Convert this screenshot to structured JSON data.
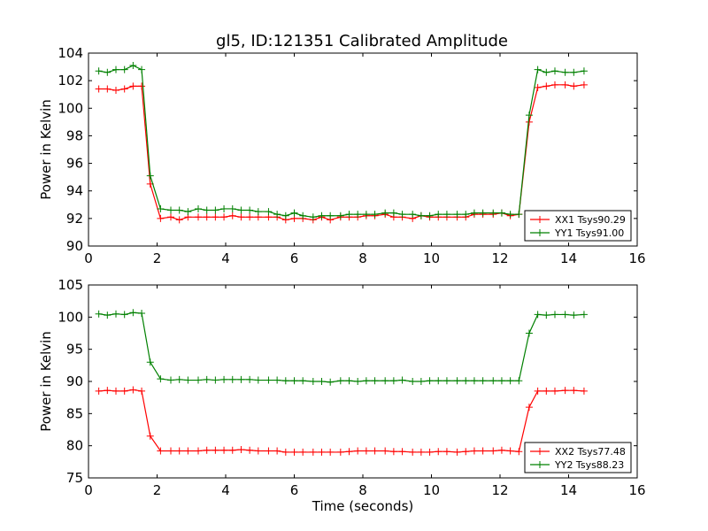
{
  "chart_data": [
    {
      "type": "line",
      "title": "gl5, ID:121351 Calibrated Amplitude",
      "xlabel": "",
      "ylabel": "Power in Kelvin",
      "xlim": [
        0,
        16
      ],
      "ylim": [
        90,
        104
      ],
      "xticks": [
        "0",
        "2",
        "4",
        "6",
        "8",
        "10",
        "12",
        "14",
        "16"
      ],
      "yticks": [
        "90",
        "92",
        "94",
        "96",
        "98",
        "100",
        "102",
        "104"
      ],
      "legend_position": "lower-right",
      "x": [
        0.3,
        0.55,
        0.8,
        1.05,
        1.3,
        1.55,
        1.8,
        2.1,
        2.4,
        2.65,
        2.9,
        3.2,
        3.45,
        3.7,
        3.95,
        4.2,
        4.45,
        4.7,
        4.95,
        5.25,
        5.5,
        5.75,
        6.0,
        6.25,
        6.55,
        6.8,
        7.05,
        7.35,
        7.6,
        7.85,
        8.1,
        8.35,
        8.65,
        8.9,
        9.15,
        9.45,
        9.7,
        9.95,
        10.2,
        10.45,
        10.75,
        11.0,
        11.25,
        11.5,
        11.8,
        12.05,
        12.3,
        12.55,
        12.85,
        13.1,
        13.35,
        13.6,
        13.9,
        14.15,
        14.45
      ],
      "series": [
        {
          "name": "XX1 Tsys90.29",
          "color": "#ff0000",
          "values": [
            101.4,
            101.4,
            101.3,
            101.4,
            101.6,
            101.6,
            94.5,
            92.0,
            92.1,
            91.9,
            92.1,
            92.1,
            92.1,
            92.1,
            92.1,
            92.2,
            92.1,
            92.1,
            92.1,
            92.1,
            92.1,
            91.9,
            92.0,
            92.0,
            91.9,
            92.1,
            91.9,
            92.1,
            92.1,
            92.1,
            92.2,
            92.2,
            92.3,
            92.1,
            92.1,
            92.0,
            92.2,
            92.1,
            92.1,
            92.1,
            92.1,
            92.1,
            92.3,
            92.3,
            92.3,
            92.4,
            92.2,
            92.3,
            99.0,
            101.5,
            101.6,
            101.7,
            101.7,
            101.6,
            101.7
          ]
        },
        {
          "name": "YY1 Tsys91.00",
          "color": "#008000",
          "values": [
            102.7,
            102.6,
            102.8,
            102.8,
            103.1,
            102.8,
            95.1,
            92.7,
            92.6,
            92.6,
            92.5,
            92.7,
            92.6,
            92.6,
            92.7,
            92.7,
            92.6,
            92.6,
            92.5,
            92.5,
            92.3,
            92.2,
            92.4,
            92.2,
            92.1,
            92.2,
            92.2,
            92.2,
            92.3,
            92.3,
            92.3,
            92.3,
            92.4,
            92.4,
            92.3,
            92.3,
            92.2,
            92.2,
            92.3,
            92.3,
            92.3,
            92.3,
            92.4,
            92.4,
            92.4,
            92.4,
            92.3,
            92.3,
            99.5,
            102.8,
            102.6,
            102.7,
            102.6,
            102.6,
            102.7
          ]
        }
      ]
    },
    {
      "type": "line",
      "title": "",
      "xlabel": "Time (seconds)",
      "ylabel": "Power in Kelvin",
      "xlim": [
        0,
        16
      ],
      "ylim": [
        75,
        105
      ],
      "xticks": [
        "0",
        "2",
        "4",
        "6",
        "8",
        "10",
        "12",
        "14",
        "16"
      ],
      "yticks": [
        "75",
        "80",
        "85",
        "90",
        "95",
        "100",
        "105"
      ],
      "legend_position": "lower-right",
      "x": [
        0.3,
        0.55,
        0.8,
        1.05,
        1.3,
        1.55,
        1.8,
        2.1,
        2.4,
        2.65,
        2.9,
        3.2,
        3.45,
        3.7,
        3.95,
        4.2,
        4.45,
        4.7,
        4.95,
        5.25,
        5.5,
        5.75,
        6.0,
        6.25,
        6.55,
        6.8,
        7.05,
        7.35,
        7.6,
        7.85,
        8.1,
        8.35,
        8.65,
        8.9,
        9.15,
        9.45,
        9.7,
        9.95,
        10.2,
        10.45,
        10.75,
        11.0,
        11.25,
        11.5,
        11.8,
        12.05,
        12.3,
        12.55,
        12.85,
        13.1,
        13.35,
        13.6,
        13.9,
        14.15,
        14.45
      ],
      "series": [
        {
          "name": "XX2 Tsys77.48",
          "color": "#ff0000",
          "values": [
            88.5,
            88.6,
            88.5,
            88.5,
            88.7,
            88.5,
            81.5,
            79.2,
            79.2,
            79.2,
            79.2,
            79.2,
            79.3,
            79.3,
            79.3,
            79.3,
            79.4,
            79.3,
            79.2,
            79.2,
            79.2,
            79.0,
            79.0,
            79.0,
            79.0,
            79.0,
            79.0,
            79.0,
            79.1,
            79.2,
            79.2,
            79.2,
            79.2,
            79.1,
            79.1,
            79.0,
            79.0,
            79.0,
            79.1,
            79.1,
            79.0,
            79.1,
            79.2,
            79.2,
            79.2,
            79.3,
            79.2,
            79.1,
            86.0,
            88.5,
            88.5,
            88.5,
            88.6,
            88.6,
            88.5
          ]
        },
        {
          "name": "YY2 Tsys88.23",
          "color": "#008000",
          "values": [
            100.5,
            100.3,
            100.5,
            100.4,
            100.7,
            100.6,
            93.0,
            90.4,
            90.2,
            90.3,
            90.2,
            90.2,
            90.3,
            90.2,
            90.3,
            90.3,
            90.3,
            90.3,
            90.2,
            90.2,
            90.2,
            90.1,
            90.1,
            90.1,
            90.0,
            90.0,
            89.9,
            90.1,
            90.1,
            90.0,
            90.1,
            90.1,
            90.1,
            90.1,
            90.2,
            90.0,
            90.0,
            90.1,
            90.1,
            90.1,
            90.1,
            90.1,
            90.1,
            90.1,
            90.1,
            90.1,
            90.1,
            90.1,
            97.5,
            100.4,
            100.3,
            100.4,
            100.4,
            100.3,
            100.4
          ]
        }
      ]
    }
  ]
}
